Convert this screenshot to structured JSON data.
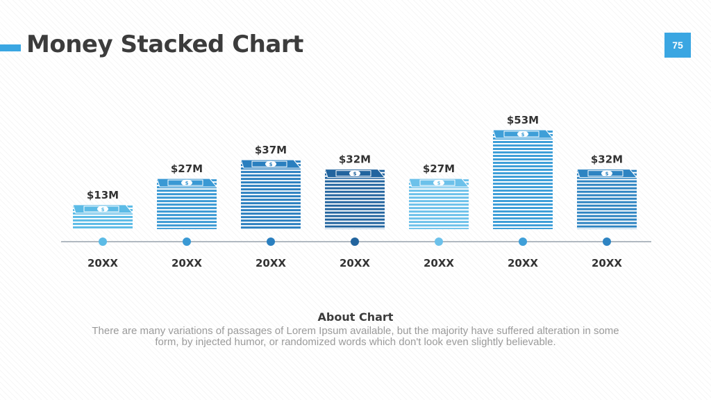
{
  "slide": {
    "title": "Money Stacked Chart",
    "page_number": "75",
    "accent_color": "#3aa6e2"
  },
  "about": {
    "title": "About Chart",
    "text": "There are many variations of passages of Lorem Ipsum available, but the majority have suffered alteration in some form, by injected humor, or randomized words which don't look even slightly believable."
  },
  "chart_data": {
    "type": "bar",
    "categories": [
      "20XX",
      "20XX",
      "20XX",
      "20XX",
      "20XX",
      "20XX",
      "20XX"
    ],
    "values": [
      13,
      27,
      37,
      32,
      27,
      53,
      32
    ],
    "data_labels": [
      "$13M",
      "$27M",
      "$37M",
      "$32M",
      "$27M",
      "$53M",
      "$32M"
    ],
    "colors": [
      "#5cbbe6",
      "#3a99d4",
      "#2a7fbf",
      "#22649e",
      "#6cc1ea",
      "#3f9fd8",
      "#2e84c2"
    ],
    "unit": "$M",
    "ylim": [
      0,
      53
    ],
    "grid": false,
    "legend": "none",
    "axis_line_color": "#b0b8c0"
  }
}
